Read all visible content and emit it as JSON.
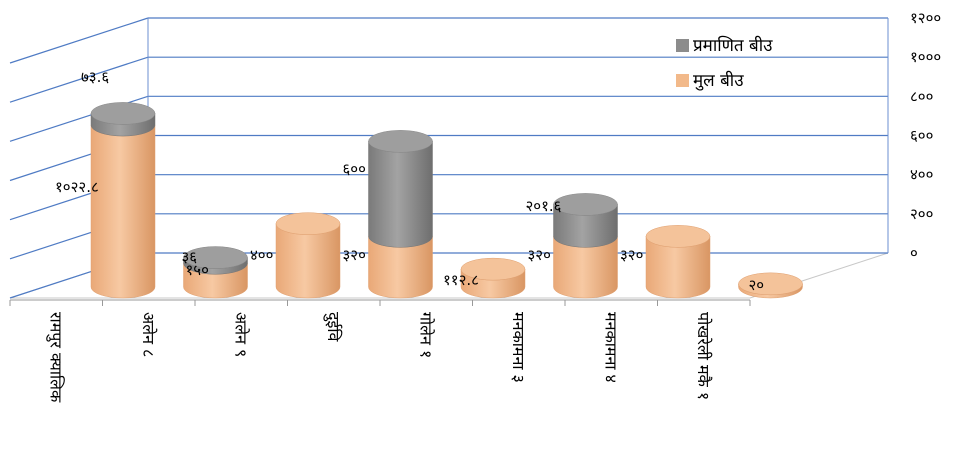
{
  "chart_data": {
    "type": "bar",
    "stacked": true,
    "style": "3d-cylinder",
    "categories": [
      "रामपुर क्यालिक",
      "अलेन ८",
      "अलेन ९",
      "दुईवि",
      "गोलेन १",
      "मनकामना ३",
      "मनकामना ४",
      "पोखरेली मकै १"
    ],
    "series": [
      {
        "name": "मुल बीउ",
        "color": "#f2b98a",
        "values": [
          1022.8,
          150,
          400,
          320,
          112.8,
          320,
          320,
          20
        ],
        "labels": [
          "१०२२.८",
          "१५०",
          "४००",
          "३२०",
          "११२.८",
          "३२०",
          "३२०",
          "२०"
        ]
      },
      {
        "name": "प्रमाणित बीउ",
        "color": "#8c8c8c",
        "values": [
          73.6,
          36,
          0,
          600,
          0,
          201.6,
          0,
          0
        ],
        "labels": [
          "७३.६",
          "३६",
          "",
          "६००",
          "",
          "२०१.६",
          "",
          ""
        ]
      }
    ],
    "ylim": [
      0,
      1200
    ],
    "yticks": [
      0,
      200,
      400,
      600,
      800,
      1000,
      1200
    ],
    "ytick_labels": [
      "०",
      "२००",
      "४००",
      "६००",
      "८००",
      "१०००",
      "१२००"
    ],
    "grid": true,
    "legend_position": "top-right",
    "title": "",
    "xlabel": "",
    "ylabel": ""
  }
}
